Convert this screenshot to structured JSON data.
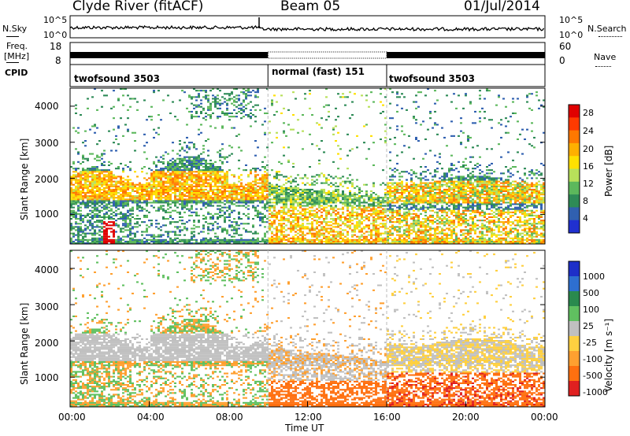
{
  "header": {
    "station": "Clyde River (fitACF)",
    "beam": "Beam 05",
    "date": "01/Jul/2014"
  },
  "summary": {
    "nsky_label": "N.Sky",
    "nsky_ticks": [
      "10^5",
      "10^0"
    ],
    "nsearch_label": "N.Search",
    "nsearch_ticks": [
      "10^5",
      "10^0"
    ],
    "freq_label_1": "Freq.",
    "freq_label_2": "[MHz]",
    "freq_ticks": [
      "18",
      "8"
    ],
    "nave_label": "Nave",
    "nave_ticks": [
      "60",
      "0"
    ],
    "cpid_label": "CPID",
    "cpid_segments": [
      {
        "label": "twofsound 3503",
        "start_hr": 0,
        "end_hr": 10
      },
      {
        "label": "normal (fast) 151",
        "start_hr": 10,
        "end_hr": 16
      },
      {
        "label": "twofsound 3503",
        "start_hr": 16,
        "end_hr": 24
      }
    ]
  },
  "colors": {
    "power": [
      "#2030d0",
      "#3060b0",
      "#2e8b57",
      "#5cb85c",
      "#b8e05a",
      "#ffe000",
      "#ffb000",
      "#ff7800",
      "#ff3a00",
      "#e00000"
    ],
    "velocity": [
      "#1e2fc8",
      "#2e6fd0",
      "#2a8a4e",
      "#60c060",
      "#c0c0c0",
      "#ffd040",
      "#ffa030",
      "#ff7010",
      "#e02020"
    ]
  },
  "chart_data": [
    {
      "type": "heatmap",
      "name_panel": "power",
      "ylabel": "Slant Range [km]",
      "yticks": [
        1000,
        2000,
        3000,
        4000
      ],
      "ylim": [
        180,
        4500
      ],
      "colorbar_label": "Power [dB]",
      "colorbar_ticks": [
        "28",
        "24",
        "20",
        "16",
        "12",
        "8",
        "4"
      ],
      "colorbar_range": [
        0,
        30
      ],
      "echo_bands": [
        {
          "t0": 0,
          "t1": 10,
          "r0": 1450,
          "r1": 2150,
          "level": 18
        },
        {
          "t0": 10,
          "t1": 16,
          "r0": 1200,
          "r1": 1800,
          "level": 12
        },
        {
          "t0": 16,
          "t1": 24,
          "r0": 1300,
          "r1": 1950,
          "level": 15
        },
        {
          "t0": 10,
          "t1": 24,
          "r0": 350,
          "r1": 1100,
          "level": 20
        },
        {
          "t0": 1.6,
          "t1": 2.2,
          "r0": 180,
          "r1": 800,
          "level": 29
        }
      ]
    },
    {
      "type": "heatmap",
      "name_panel": "velocity",
      "ylabel": "Slant Range [km]",
      "yticks": [
        1000,
        2000,
        3000,
        4000
      ],
      "ylim": [
        180,
        4500
      ],
      "colorbar_label": "Velocity [m s⁻¹]",
      "colorbar_ticks": [
        "1000",
        "500",
        "100",
        "25",
        "-25",
        "-100",
        "-500",
        "-1000"
      ],
      "colorbar_range": [
        -1000,
        1000
      ],
      "xlabel": "Time UT",
      "xticks": [
        "00:00",
        "04:00",
        "08:00",
        "12:00",
        "16:00",
        "20:00",
        "00:00"
      ],
      "xlim_hr": [
        0,
        24
      ]
    }
  ]
}
